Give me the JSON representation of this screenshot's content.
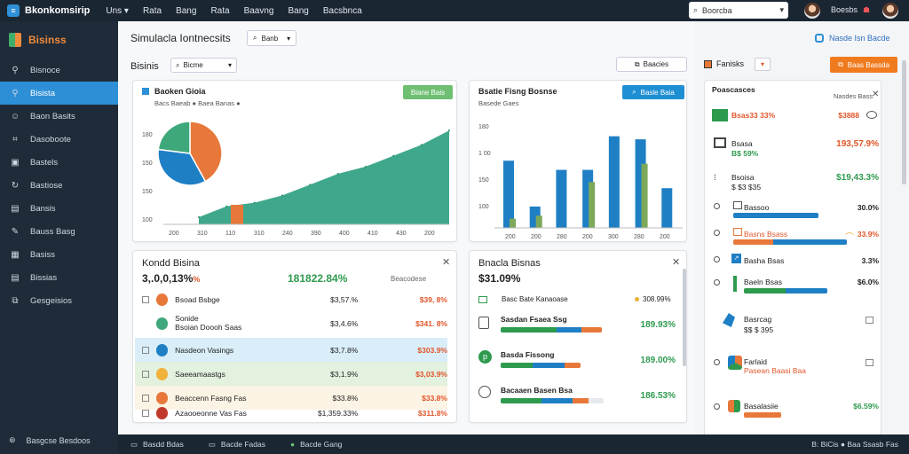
{
  "topbar": {
    "brand": "Bkonkomsirip",
    "nav": [
      "Uns ▾",
      "Rata",
      "Bang",
      "Rata",
      "Baavng",
      "Bang",
      "Bacsbnca"
    ],
    "search_placeholder": "Boorcba",
    "user_name": "Boesbs",
    "flag": "☗"
  },
  "sidebar": {
    "title": "Bisinss",
    "items": [
      {
        "label": "Bisnoce",
        "icon": "link-icon"
      },
      {
        "label": "Bisista",
        "icon": "link-icon",
        "active": true
      },
      {
        "label": "Baon Basits",
        "icon": "users-icon"
      },
      {
        "label": "Dasoboote",
        "icon": "tag-icon"
      },
      {
        "label": "Bastels",
        "icon": "monitor-icon"
      },
      {
        "label": "Bastiose",
        "icon": "refresh-icon"
      },
      {
        "label": "Bansis",
        "icon": "window-icon"
      },
      {
        "label": "Bauss Basg",
        "icon": "pen-icon"
      },
      {
        "label": "Basiss",
        "icon": "grid-icon"
      },
      {
        "label": "Bissias",
        "icon": "window-icon"
      },
      {
        "label": "Gesgeisios",
        "icon": "gift-icon"
      }
    ],
    "footer": "Basgcse Besdoos"
  },
  "main": {
    "title": "Simulacla Iontnecsits",
    "filter": "Banb",
    "subtitle": "Bisinis",
    "filter2": "Bicme",
    "btn_top": "Baacies",
    "top_right_link": "Nasde Isn Bacde"
  },
  "card1": {
    "title": "Baoken Gioia",
    "sub": "Bacs Baeab  ●  Baea Banas  ●",
    "pill": "Biane Bais",
    "yticks": [
      "180",
      "150",
      "150",
      "100"
    ],
    "xticks": [
      "200",
      "310",
      "110",
      "310",
      "240",
      "390",
      "400",
      "410",
      "430",
      "200"
    ]
  },
  "card2": {
    "title": "Bsatie Fisng Bosnse",
    "sub": "Basede Gaes",
    "pill": "Basle Baia",
    "yticks": [
      "180",
      "1 00",
      "150",
      "100"
    ],
    "xticks": [
      "200",
      "200",
      "280",
      "200",
      "300",
      "280",
      "200"
    ]
  },
  "chart_data": [
    {
      "type": "area",
      "title": "Baoken Gioia",
      "x": [
        "200",
        "310",
        "110",
        "310",
        "240",
        "390",
        "400",
        "410",
        "430",
        "200"
      ],
      "series": [
        {
          "values": [
            10,
            25,
            30,
            40,
            55,
            70,
            80,
            95,
            110,
            130
          ]
        }
      ]
    },
    {
      "type": "pie",
      "values": [
        42,
        35,
        23
      ],
      "colors": [
        "#e8783a",
        "#1f7fc4",
        "#3fa87a"
      ]
    },
    {
      "type": "bar",
      "title": "Bsatie Fisng Bosnse",
      "categories": [
        "200",
        "200",
        "280",
        "200",
        "300",
        "280",
        "200"
      ],
      "series": [
        {
          "values": [
            110,
            35,
            95,
            95,
            150,
            145,
            65
          ],
          "color": "#1f7fc4"
        },
        {
          "values": [
            15,
            20,
            0,
            75,
            0,
            105,
            0
          ],
          "color": "#7da85a"
        }
      ],
      "ylim": [
        0,
        180
      ]
    }
  ],
  "card3": {
    "title": "Kondd Bisina",
    "big_left": "3,.0,0,13%",
    "big_pct_suffix": "%",
    "big_mid": "181822.84%",
    "big_right": "Beacodese",
    "rows": [
      {
        "name": "Bsoad Bsbge",
        "v1": "$3,57.%",
        "v2": "$39, 8%",
        "color": "#e8783a"
      },
      {
        "name": "Sonide",
        "name2": "Bsoian Doooh Saas",
        "v1": "$3,4.6%",
        "v2": "$341. 8%",
        "color": "#3fa87a"
      },
      {
        "name": "Nasdeon Vasings",
        "v1": "$3,7.8%",
        "v2": "$303.9%",
        "color": "#1f7fc4"
      },
      {
        "name": "Saeeamaastgs",
        "v1": "$3,1.9%",
        "v2": "$3,03.9%",
        "color": "#f0b23a"
      },
      {
        "name": "Beaccenn Fasng Fas",
        "v1": "$33.8%",
        "v2": "$33.8%",
        "color": "#e8783a"
      },
      {
        "name": "Azaooeonne Vas Fas",
        "v1": "$1,359.33%",
        "v2": "$311.8%",
        "color": "#c0392b"
      }
    ]
  },
  "card4": {
    "title": "Bnacla Bisnas",
    "big": "$31.09%",
    "legend": "Basc Bate Kanaoase",
    "legend_right": "308.99%",
    "rows": [
      {
        "name": "Sasdan Fsaea Ssg",
        "value": "189.93%",
        "segs": [
          55,
          25,
          20
        ]
      },
      {
        "name": "Basda Fissong",
        "value": "189.00%",
        "segs": [
          40,
          40,
          20
        ]
      },
      {
        "name": "Bacaaen Basen Bsa",
        "value": "186.53%",
        "segs": [
          40,
          30,
          15
        ]
      }
    ]
  },
  "right": {
    "label": "Fanisks",
    "cta": "Baas Bassda",
    "header": "Poascasces",
    "header_right": "Nasdes Bass",
    "rows": [
      {
        "label": "Bsas33 33%",
        "value": "$3888"
      },
      {
        "label": "Bsasa",
        "label2": "B$ 59%",
        "value": "193,57.9%"
      },
      {
        "label": "Bsoisa",
        "label2": "$ $3 $35",
        "value": "$19,43.3%"
      },
      {
        "label": "Bassoo",
        "value": "30.0%"
      },
      {
        "label": "Basns Bsass",
        "value": "33.9%"
      },
      {
        "label": "Basha Bsas",
        "value": "3.3%"
      },
      {
        "label": "Baeln Bsas",
        "value": "$6.0%"
      },
      {
        "label": "Basrcag",
        "label2": "$$ $ 395",
        "value": ""
      },
      {
        "label": "Farlaid",
        "label2": "Pasean Baasi Baa",
        "value": ""
      },
      {
        "label": "Basalasiie",
        "value": "$6.59%"
      }
    ]
  },
  "statusbar": {
    "items": [
      "Basdd Bdas",
      "Bacde Fadas",
      "Bacde Gang"
    ],
    "right": "B: BiCis ● Baa Ssasb Fas"
  }
}
